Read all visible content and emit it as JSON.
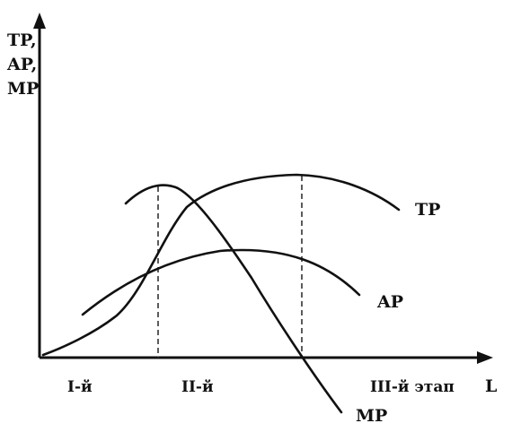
{
  "diagram": {
    "y_axis_label_lines": [
      "TP,",
      "AP,",
      "MP"
    ],
    "x_axis_label": "L",
    "curves": {
      "tp_label": "TP",
      "ap_label": "AP",
      "mp_label": "MP"
    },
    "stages": [
      "I-й",
      "II-й",
      "III-й этап"
    ]
  }
}
